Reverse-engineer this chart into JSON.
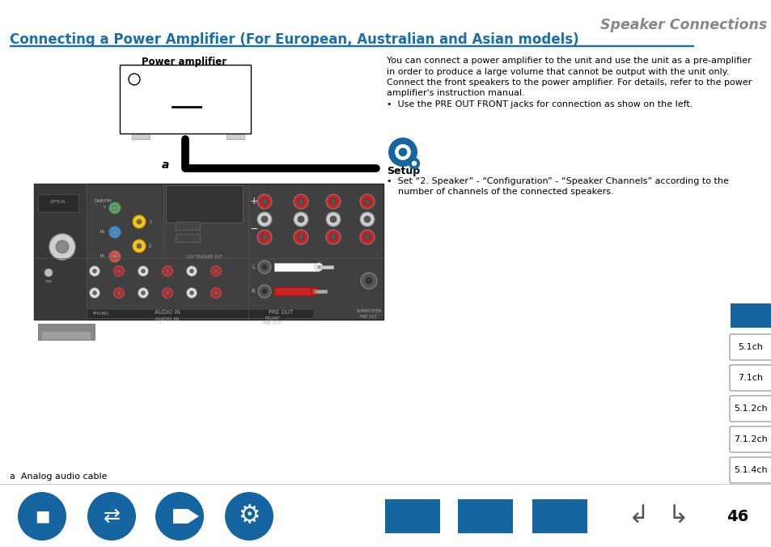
{
  "page_title": "Speaker Connections",
  "section_title": "Connecting a Power Amplifier (For European, Australian and Asian models)",
  "diagram_label": "Power amplifier",
  "label_a": "a",
  "footnote_a": "a  Analog audio cable",
  "body_lines": [
    "You can connect a power amplifier to the unit and use the unit as a pre-amplifier",
    "in order to produce a large volume that cannot be output with the unit only.",
    "Connect the front speakers to the power amplifier. For details, refer to the power",
    "amplifier's instruction manual.",
    "•  Use the PRE OUT FRONT jacks for connection as show on the left."
  ],
  "setup_title": "Setup",
  "setup_lines": [
    "•  Set “2. Speaker” - “Configuration” - “Speaker Channels” according to the",
    "    number of channels of the connected speakers."
  ],
  "nav_labels": [
    "5.1ch",
    "7.1ch",
    "5.1.2ch",
    "7.1.2ch",
    "5.1.4ch"
  ],
  "page_number": "46",
  "blue": "#1a6faa",
  "nav_blue": "#1565a0",
  "dark_blue": "#1a5276",
  "header_gray": "#888888",
  "bg": "#ffffff",
  "rec_dark": "#3c3c3c",
  "rec_mid": "#555555",
  "rec_light": "#6e6e6e"
}
